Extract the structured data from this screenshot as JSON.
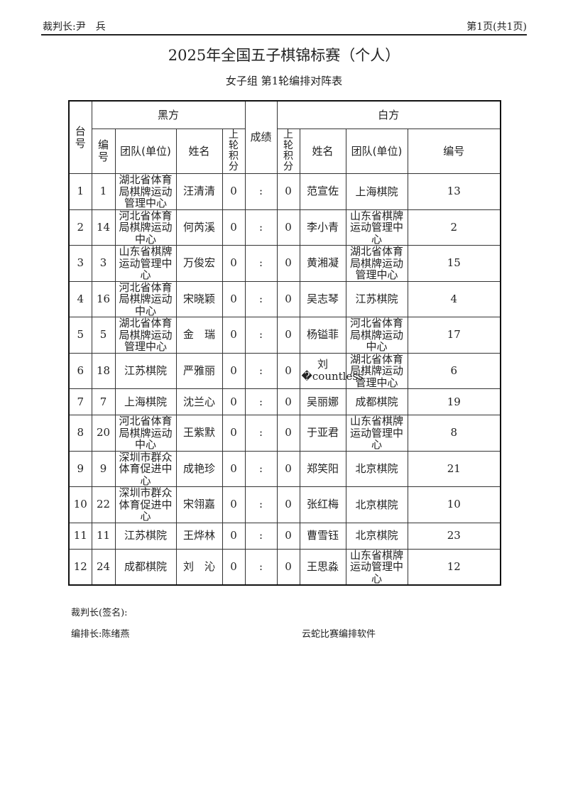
{
  "header": {
    "chief_referee": "裁判长:尹　兵",
    "page": "第1页(共1页)"
  },
  "title": "2025年全国五子棋锦标赛（个人）",
  "subtitle": "女子组  第1轮编排对阵表",
  "table": {
    "headers": {
      "table_no": "台号",
      "black": "黑方",
      "result": "成绩",
      "white": "白方",
      "no": "编号",
      "team": "团队(单位)",
      "name": "姓名",
      "prev_score": "上轮积分"
    },
    "rows": [
      {
        "table": "1",
        "b_no": "1",
        "b_team": "湖北省体育局棋牌运动管理中心",
        "b_name": "汪清清",
        "b_score": "0",
        "sep": ":",
        "w_score": "0",
        "w_name": "范宣佐",
        "w_team": "上海棋院",
        "w_no": "13"
      },
      {
        "table": "2",
        "b_no": "14",
        "b_team": "河北省体育局棋牌运动中心",
        "b_name": "何芮溪",
        "b_score": "0",
        "sep": ":",
        "w_score": "0",
        "w_name": "李小青",
        "w_team": "山东省棋牌运动管理中心",
        "w_no": "2"
      },
      {
        "table": "3",
        "b_no": "3",
        "b_team": "山东省棋牌运动管理中心",
        "b_name": "万俊宏",
        "b_score": "0",
        "sep": ":",
        "w_score": "0",
        "w_name": "黄湘凝",
        "w_team": "湖北省体育局棋牌运动管理中心",
        "w_no": "15"
      },
      {
        "table": "4",
        "b_no": "16",
        "b_team": "河北省体育局棋牌运动中心",
        "b_name": "宋晓颖",
        "b_score": "0",
        "sep": ":",
        "w_score": "0",
        "w_name": "吴志琴",
        "w_team": "江苏棋院",
        "w_no": "4"
      },
      {
        "table": "5",
        "b_no": "5",
        "b_team": "湖北省体育局棋牌运动管理中心",
        "b_name": "金　瑞",
        "b_score": "0",
        "sep": ":",
        "w_score": "0",
        "w_name": "杨镒菲",
        "w_team": "河北省体育局棋牌运动中心",
        "w_no": "17"
      },
      {
        "table": "6",
        "b_no": "18",
        "b_team": "江苏棋院",
        "b_name": "严雅丽",
        "b_score": "0",
        "sep": ":",
        "w_score": "0",
        "w_name": "刘　�countless",
        "w_team": "湖北省体育局棋牌运动管理中心",
        "w_no": "6"
      },
      {
        "table": "7",
        "b_no": "7",
        "b_team": "上海棋院",
        "b_name": "沈兰心",
        "b_score": "0",
        "sep": ":",
        "w_score": "0",
        "w_name": "吴丽娜",
        "w_team": "成都棋院",
        "w_no": "19"
      },
      {
        "table": "8",
        "b_no": "20",
        "b_team": "河北省体育局棋牌运动中心",
        "b_name": "王紫默",
        "b_score": "0",
        "sep": ":",
        "w_score": "0",
        "w_name": "于亚君",
        "w_team": "山东省棋牌运动管理中心",
        "w_no": "8"
      },
      {
        "table": "9",
        "b_no": "9",
        "b_team": "深圳市群众体育促进中心",
        "b_name": "成艳珍",
        "b_score": "0",
        "sep": ":",
        "w_score": "0",
        "w_name": "郑笑阳",
        "w_team": "北京棋院",
        "w_no": "21"
      },
      {
        "table": "10",
        "b_no": "22",
        "b_team": "深圳市群众体育促进中心",
        "b_name": "宋翎嘉",
        "b_score": "0",
        "sep": ":",
        "w_score": "0",
        "w_name": "张红梅",
        "w_team": "北京棋院",
        "w_no": "10"
      },
      {
        "table": "11",
        "b_no": "11",
        "b_team": "江苏棋院",
        "b_name": "王烨林",
        "b_score": "0",
        "sep": ":",
        "w_score": "0",
        "w_name": "曹雪钰",
        "w_team": "北京棋院",
        "w_no": "23"
      },
      {
        "table": "12",
        "b_no": "24",
        "b_team": "成都棋院",
        "b_name": "刘　沁",
        "b_score": "0",
        "sep": ":",
        "w_score": "0",
        "w_name": "王思淼",
        "w_team": "山东省棋牌运动管理中心",
        "w_no": "12"
      }
    ]
  },
  "footer": {
    "signature": "裁判长(签名):",
    "arranger": "编排长:陈绪燕",
    "software": "云蛇比赛编排软件"
  }
}
